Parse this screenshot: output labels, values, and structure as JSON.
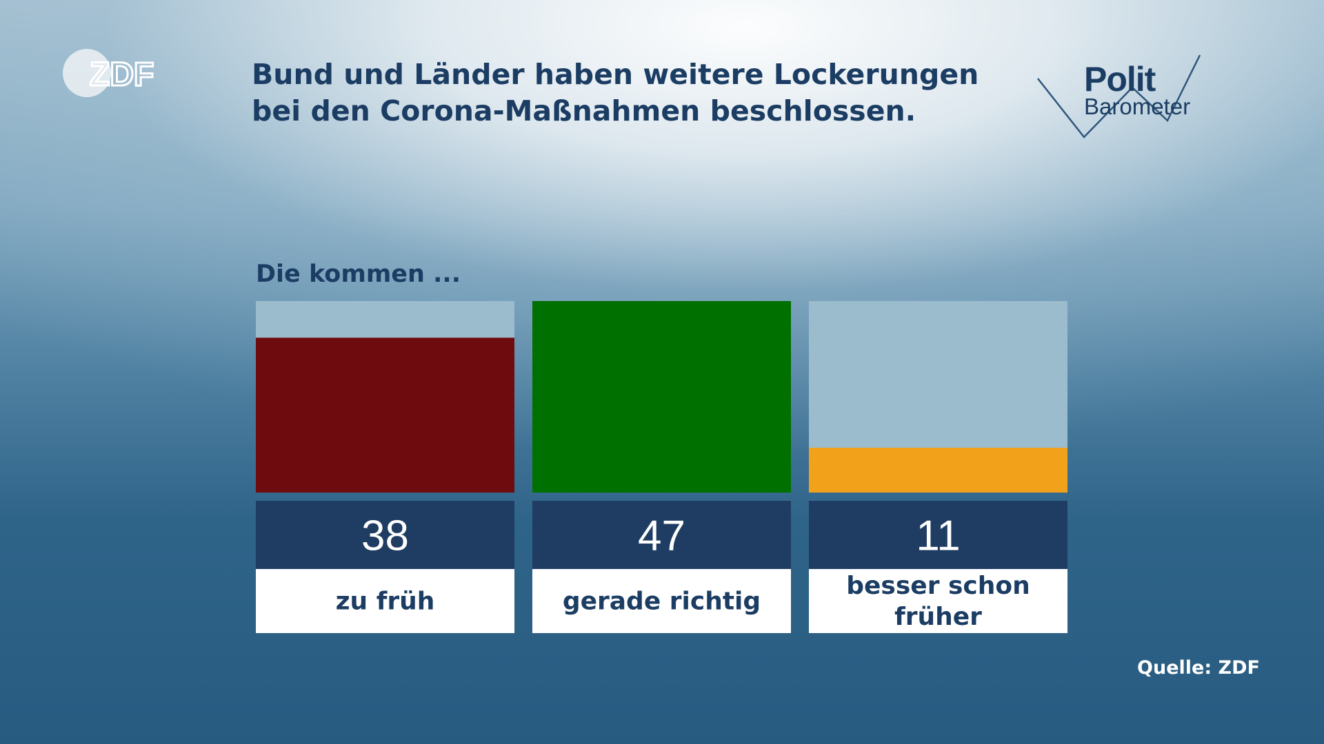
{
  "header": {
    "title": "Bund und Länder haben weitere Lockerungen bei den Corona-Maßnahmen beschlossen.",
    "logo_left": "ZDF",
    "logo_right_line1": "Polit",
    "logo_right_line2": "Barometer"
  },
  "footer": {
    "source": "Quelle: ZDF"
  },
  "colors": {
    "title": "#1c3d63",
    "track": "#9bbccd",
    "value_box": "#1f3d62",
    "label_box": "#ffffff"
  },
  "chart_data": {
    "type": "bar",
    "title": "Die kommen ...",
    "categories": [
      "zu früh",
      "gerade richtig",
      "besser schon früher"
    ],
    "values": [
      38,
      47,
      11
    ],
    "value_labels": [
      "38",
      "47",
      "11"
    ],
    "colors": [
      "#6e0b0e",
      "#007100",
      "#f2a11b"
    ],
    "unit": "%",
    "ylim": [
      0,
      47
    ],
    "xlabel": "",
    "ylabel": ""
  }
}
